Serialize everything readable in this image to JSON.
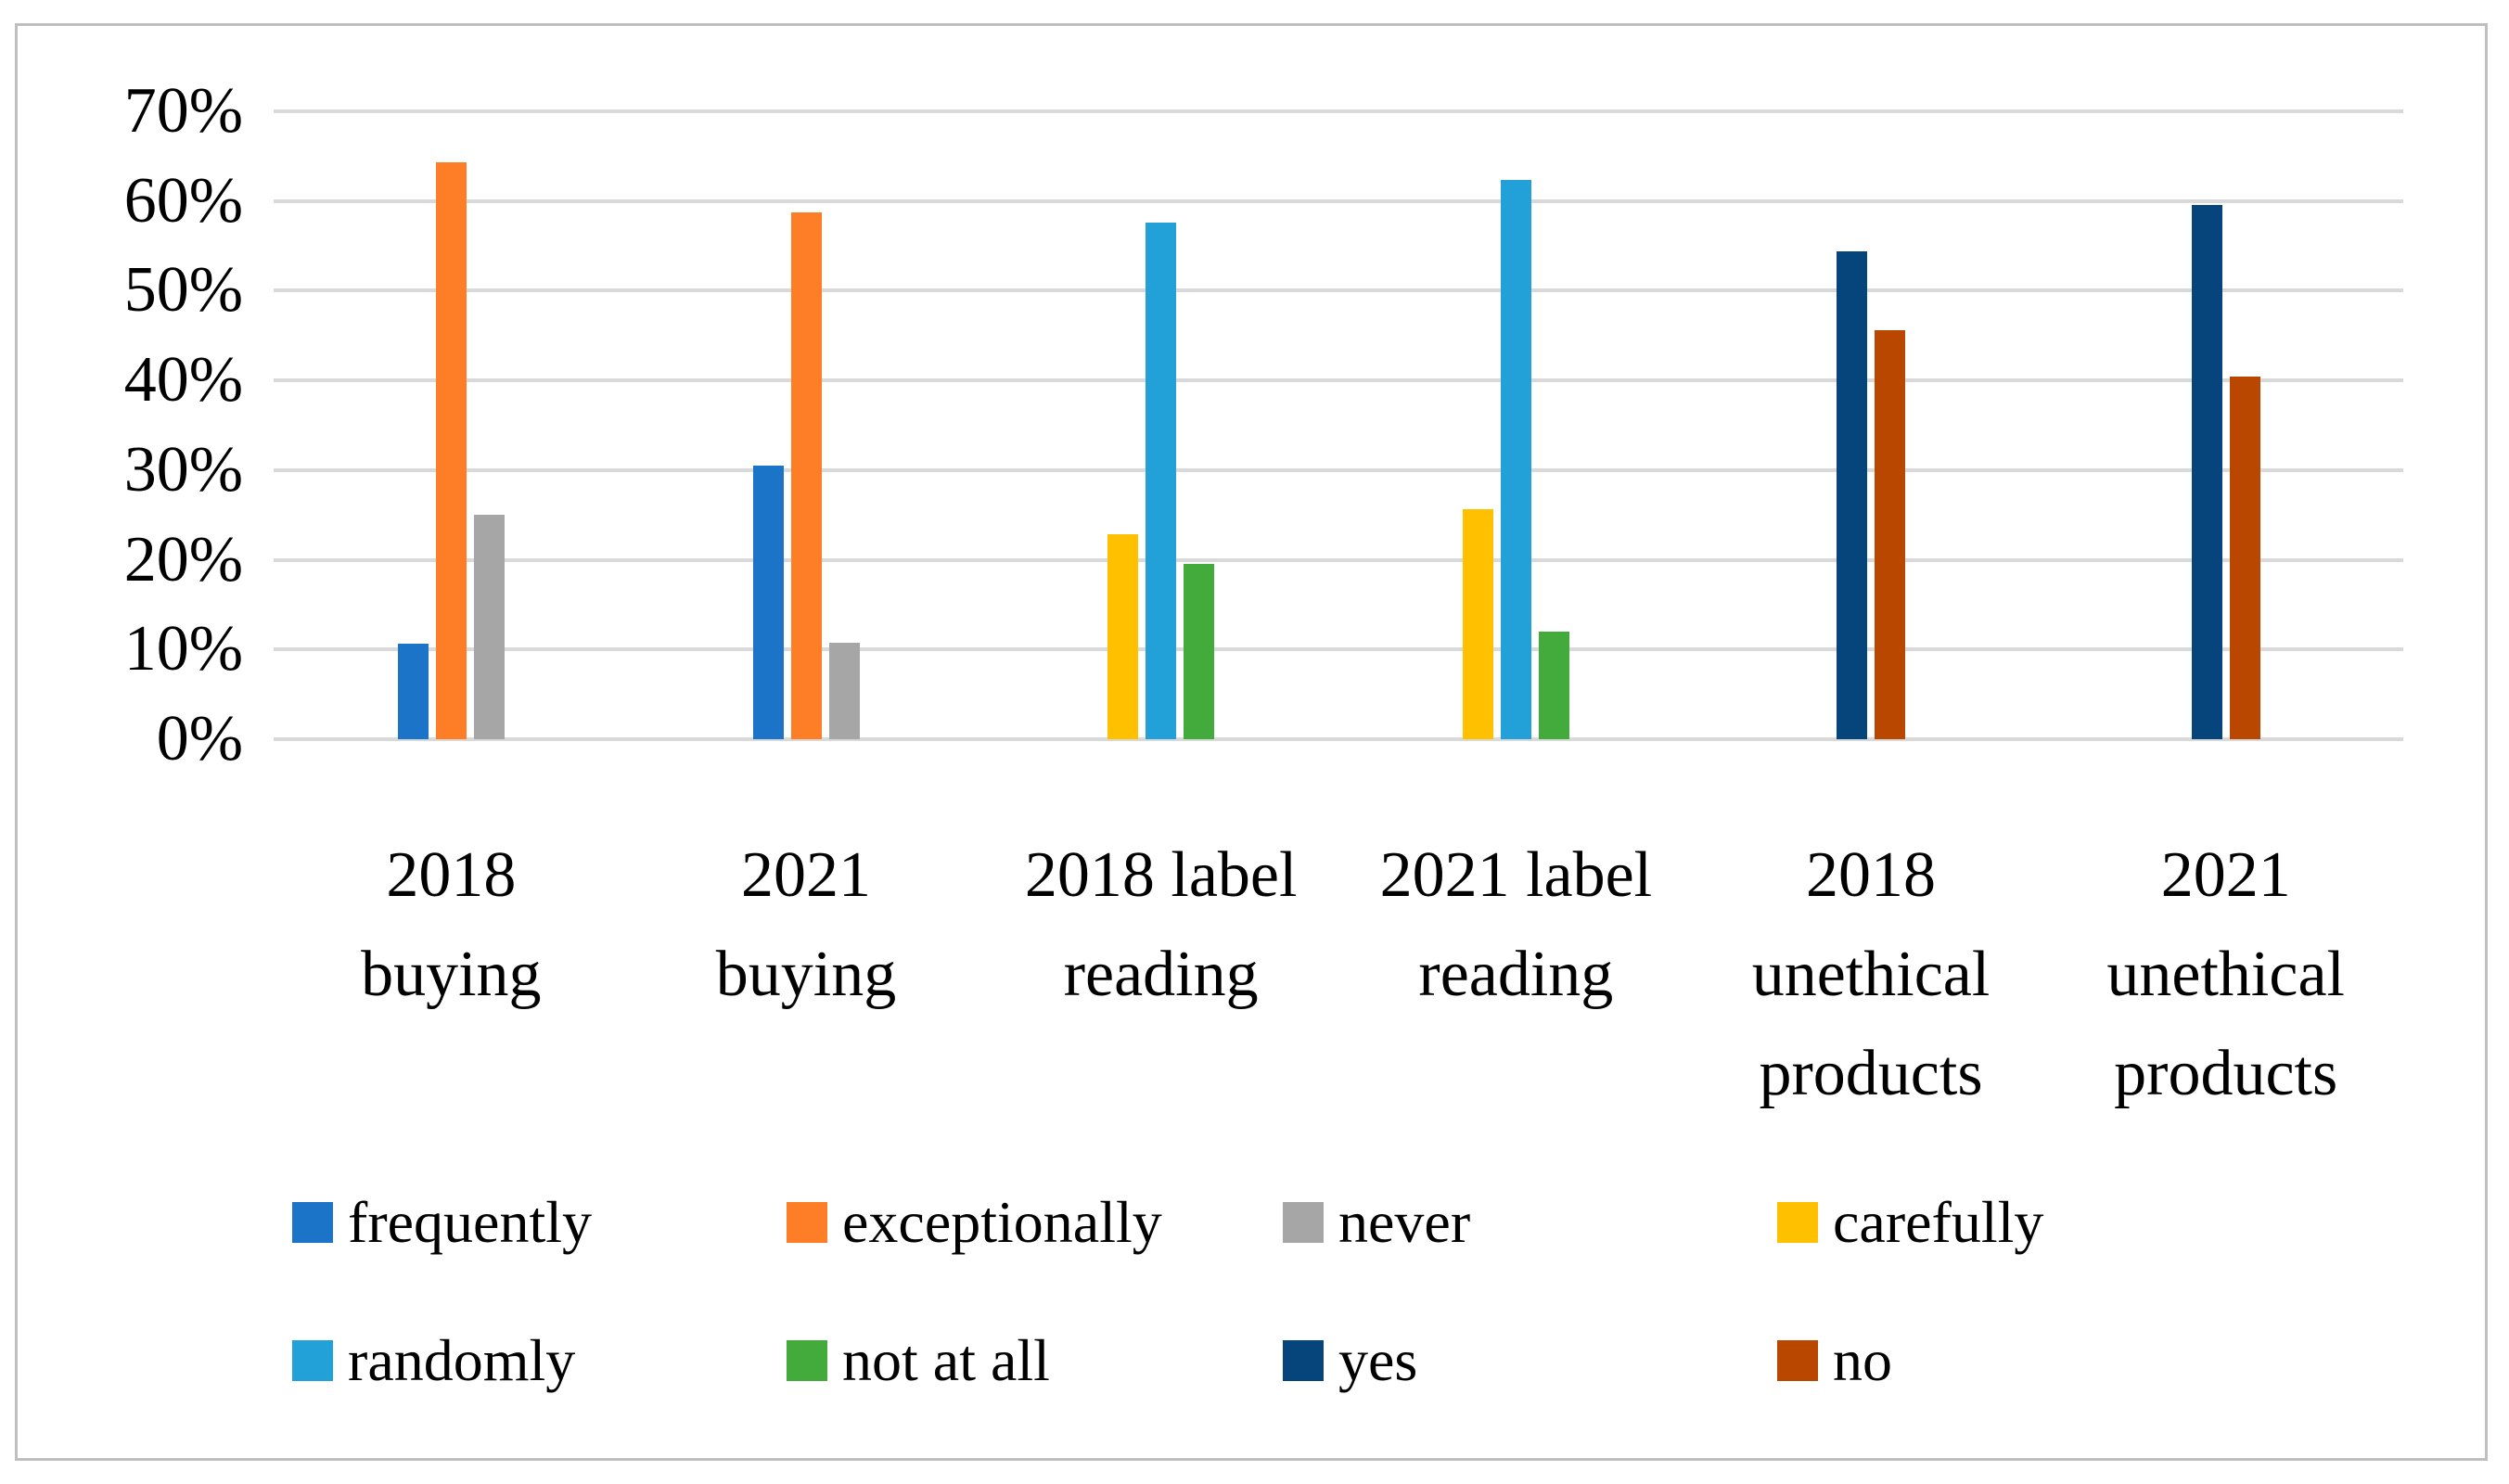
{
  "chart_data": {
    "type": "bar",
    "unit": "percent",
    "ylim": [
      0,
      70
    ],
    "yticks": [
      0,
      10,
      20,
      30,
      40,
      50,
      60,
      70
    ],
    "ytick_suffix": "%",
    "grid": true,
    "legend_position": "bottom",
    "categories": [
      "2018 buying",
      "2021 buying",
      "2018 label reading",
      "2021 label reading",
      "2018 unethical products",
      "2021 unethical products"
    ],
    "category_lines": [
      [
        "2018",
        "buying"
      ],
      [
        "2021",
        "buying"
      ],
      [
        "2018 label",
        "reading"
      ],
      [
        "2021 label",
        "reading"
      ],
      [
        "2018",
        "unethical",
        "products"
      ],
      [
        "2021",
        "unethical",
        "products"
      ]
    ],
    "series": [
      {
        "name": "frequently",
        "color": "#1b74c8",
        "values": [
          10.7,
          30.5,
          null,
          null,
          null,
          null
        ]
      },
      {
        "name": "exceptionally",
        "color": "#fd7e27",
        "values": [
          64.3,
          58.7,
          null,
          null,
          null,
          null
        ]
      },
      {
        "name": "never",
        "color": "#a6a6a6",
        "values": [
          25.0,
          10.8,
          null,
          null,
          null,
          null
        ]
      },
      {
        "name": "carefully",
        "color": "#ffc000",
        "values": [
          null,
          null,
          22.9,
          25.6,
          null,
          null
        ]
      },
      {
        "name": "randomly",
        "color": "#22a0d8",
        "values": [
          null,
          null,
          57.6,
          62.4,
          null,
          null
        ]
      },
      {
        "name": "not at all",
        "color": "#43ab3c",
        "values": [
          null,
          null,
          19.5,
          12.0,
          null,
          null
        ]
      },
      {
        "name": "yes",
        "color": "#05457c",
        "values": [
          null,
          null,
          null,
          null,
          54.4,
          59.6
        ]
      },
      {
        "name": "no",
        "color": "#b94700",
        "values": [
          null,
          null,
          null,
          null,
          45.6,
          40.4
        ]
      }
    ],
    "legend_rows": [
      [
        "frequently",
        "exceptionally",
        "never",
        "carefully"
      ],
      [
        "randomly",
        "not at all",
        "yes",
        "no"
      ]
    ]
  },
  "colors": {
    "gridline": "#d9d9d9",
    "figure_border": "#bfbfbf",
    "text": "#000000",
    "background": "#ffffff"
  }
}
